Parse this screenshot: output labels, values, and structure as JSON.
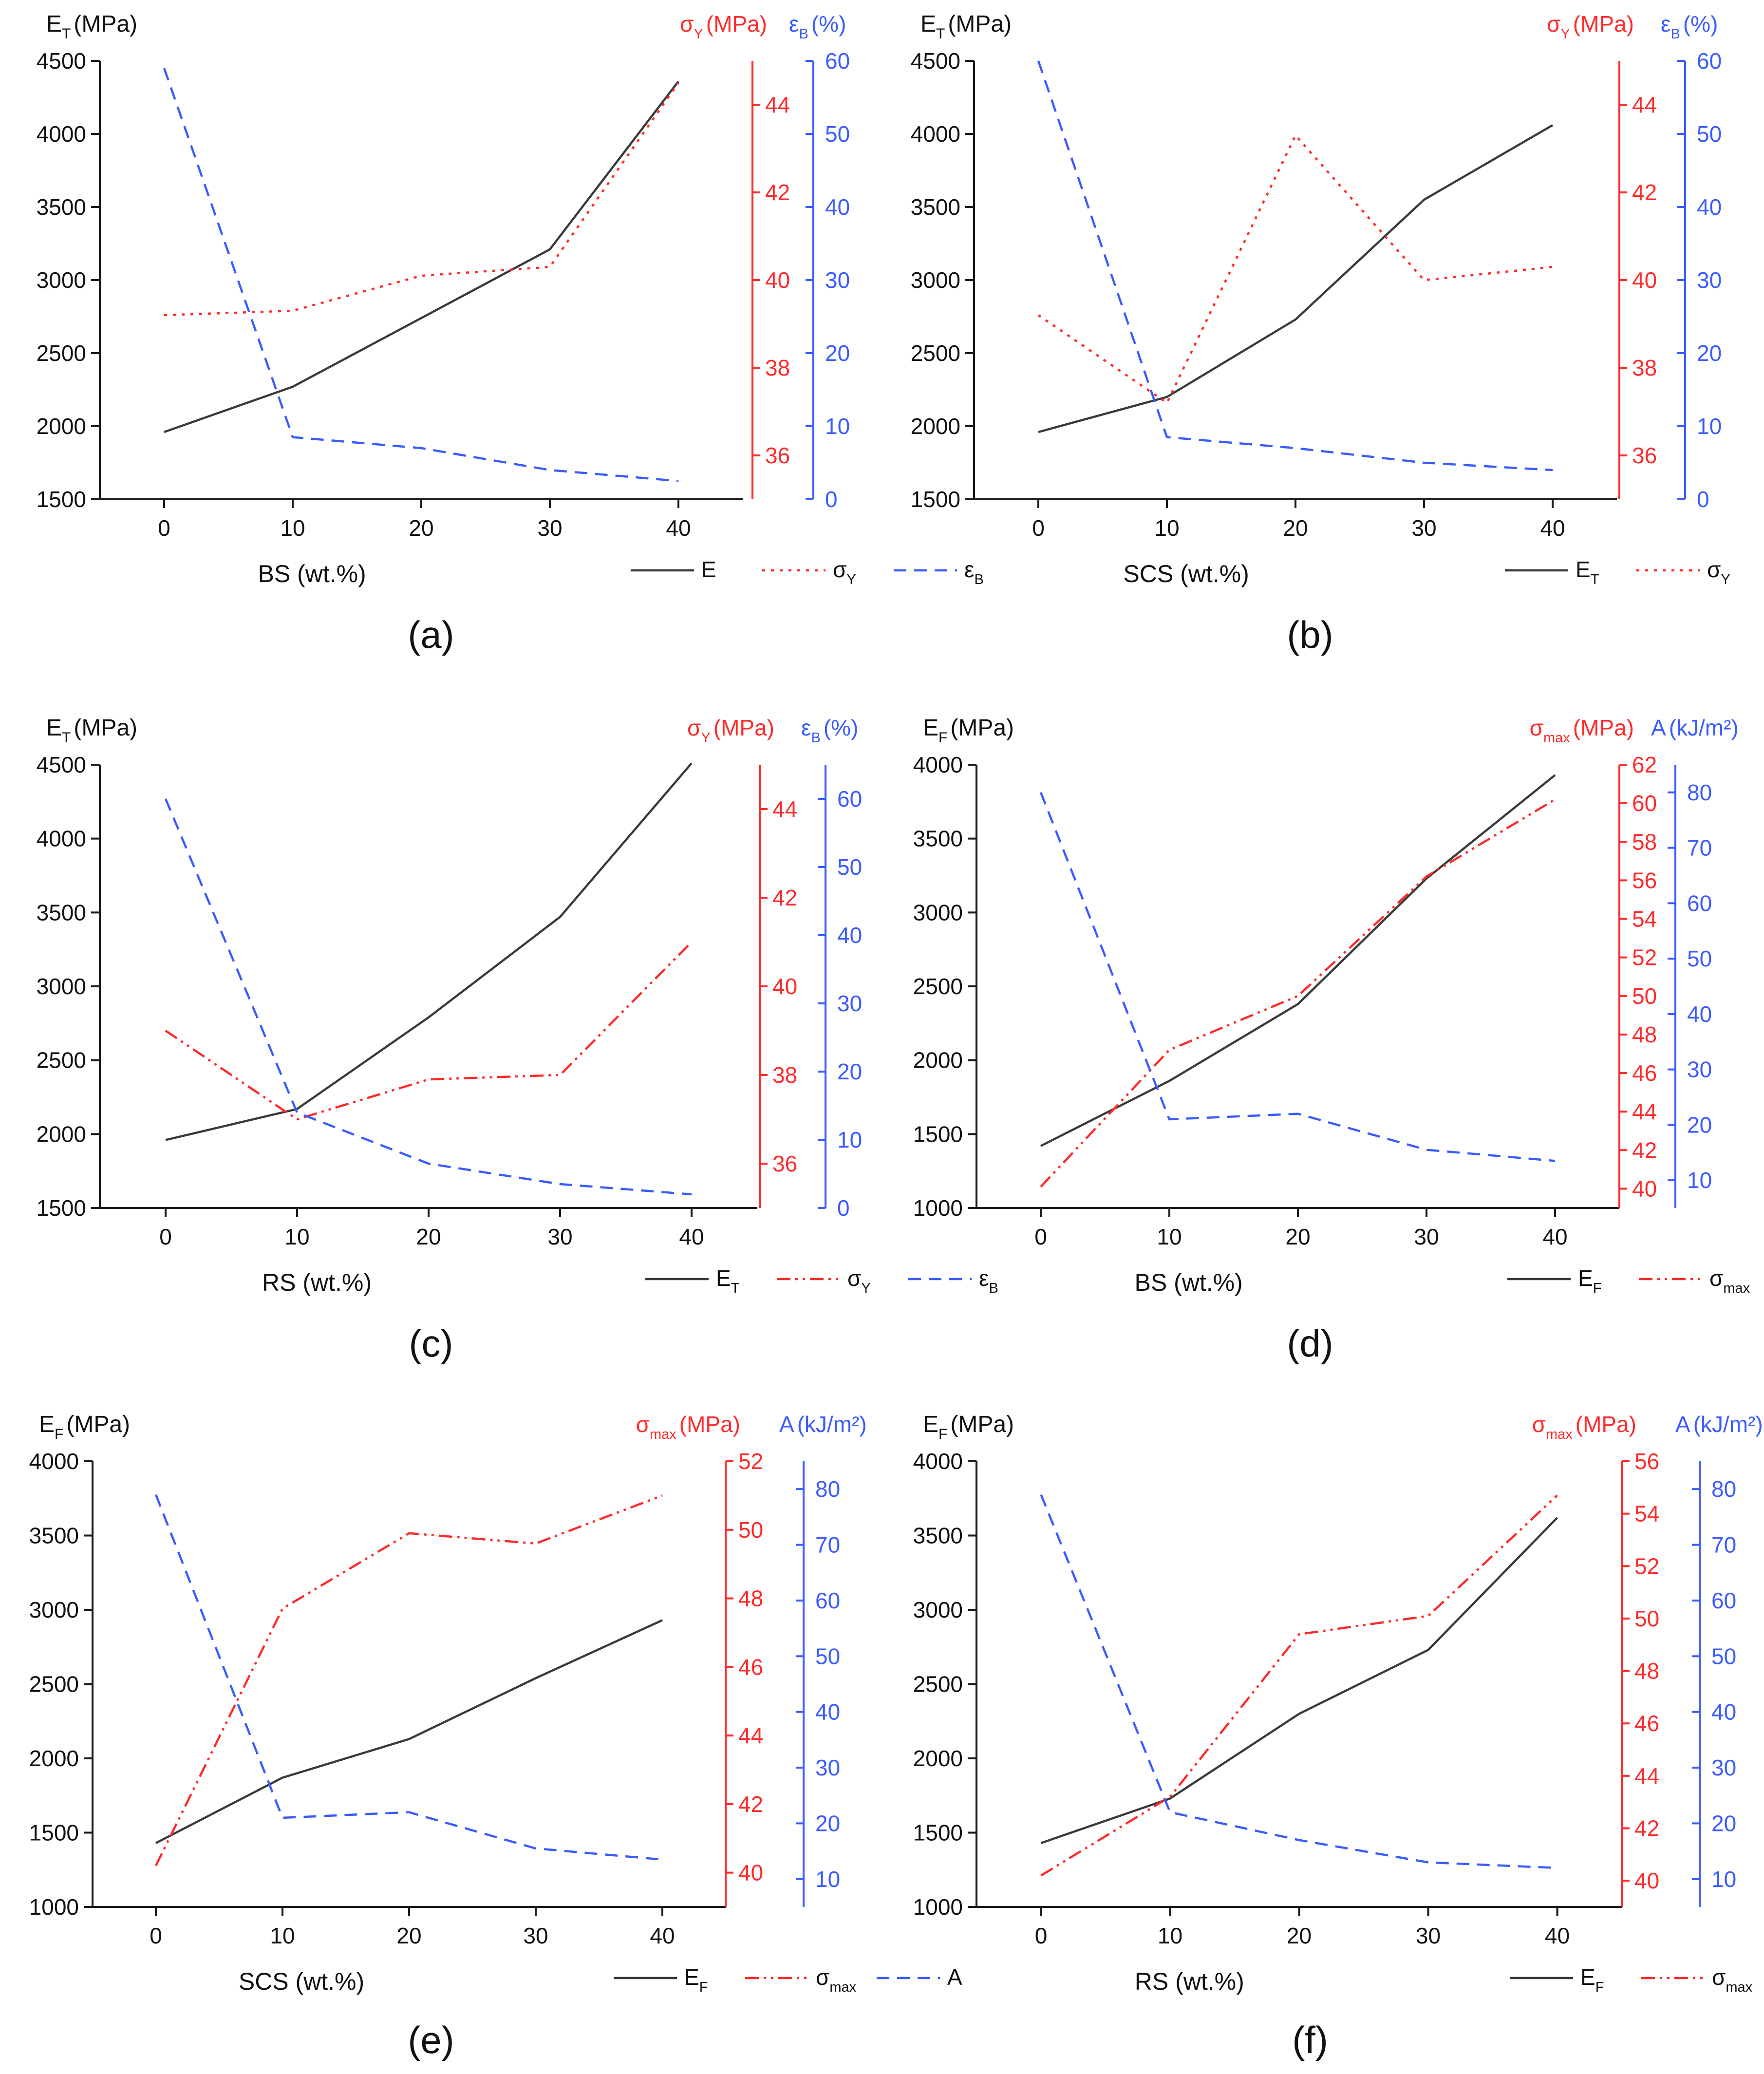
{
  "colors": {
    "e": "#3a3a3a",
    "sigma": "#ff2a2a",
    "third": "#3b5bff",
    "axis": "#1a1a1a"
  },
  "chart_data": [
    {
      "id": "a",
      "type": "line",
      "caption": "(a)",
      "xlabel": "BS (wt.%)",
      "x": [
        0,
        10,
        20,
        30,
        40
      ],
      "x_ticks": [
        "0",
        "10",
        "20",
        "30",
        "40"
      ],
      "left_axis": {
        "label": "E",
        "label_sub": "T",
        "label_unit": "(MPa)",
        "ylim": [
          1500,
          4500
        ],
        "ticks": [
          1500,
          2000,
          2500,
          3000,
          3500,
          4000,
          4500
        ]
      },
      "mid_axis": {
        "label": "σ",
        "label_sub": "Y",
        "label_unit": "(MPa)",
        "ylim": [
          35,
          45
        ],
        "ticks": [
          36,
          38,
          40,
          42,
          44
        ]
      },
      "right_axis": {
        "label": "ε",
        "label_sub": "B",
        "label_unit": "(%)",
        "ylim": [
          0,
          60
        ],
        "ticks": [
          0,
          10,
          20,
          30,
          40,
          50,
          60
        ]
      },
      "series": [
        {
          "name": "E",
          "sub": "",
          "axis": "left",
          "style": "solid",
          "values": [
            1960,
            2270,
            2740,
            3210,
            4360
          ]
        },
        {
          "name": "σ",
          "sub": "Y",
          "axis": "mid",
          "style": "dotted",
          "values": [
            39.2,
            39.3,
            40.1,
            40.3,
            44.5
          ]
        },
        {
          "name": "ε",
          "sub": "B",
          "axis": "right",
          "style": "dashed",
          "values": [
            59,
            8.5,
            7,
            4,
            2.5
          ]
        }
      ]
    },
    {
      "id": "b",
      "type": "line",
      "caption": "(b)",
      "xlabel": "SCS (wt.%)",
      "x": [
        0,
        10,
        20,
        30,
        40
      ],
      "x_ticks": [
        "0",
        "10",
        "20",
        "30",
        "40"
      ],
      "left_axis": {
        "label": "E",
        "label_sub": "T",
        "label_unit": "(MPa)",
        "ylim": [
          1500,
          4500
        ],
        "ticks": [
          1500,
          2000,
          2500,
          3000,
          3500,
          4000,
          4500
        ]
      },
      "mid_axis": {
        "label": "σ",
        "label_sub": "Y",
        "label_unit": "(MPa)",
        "ylim": [
          35,
          45
        ],
        "ticks": [
          36,
          38,
          40,
          42,
          44
        ]
      },
      "right_axis": {
        "label": "ε",
        "label_sub": "B",
        "label_unit": "(%)",
        "ylim": [
          0,
          60
        ],
        "ticks": [
          0,
          10,
          20,
          30,
          40,
          50,
          60
        ]
      },
      "series": [
        {
          "name": "E",
          "sub": "T",
          "axis": "left",
          "style": "solid",
          "values": [
            1960,
            2200,
            2730,
            3550,
            4060
          ]
        },
        {
          "name": "σ",
          "sub": "Y",
          "axis": "mid",
          "style": "dotted",
          "values": [
            39.2,
            37.2,
            43.3,
            40.0,
            40.3
          ]
        },
        {
          "name": "ε",
          "sub": "B",
          "axis": "right",
          "style": "dashed",
          "values": [
            60,
            8.5,
            7,
            5,
            4
          ]
        }
      ]
    },
    {
      "id": "c",
      "type": "line",
      "caption": "(c)",
      "xlabel": "RS (wt.%)",
      "x": [
        0,
        10,
        20,
        30,
        40
      ],
      "x_ticks": [
        "0",
        "10",
        "20",
        "30",
        "40"
      ],
      "left_axis": {
        "label": "E",
        "label_sub": "T",
        "label_unit": "(MPa)",
        "ylim": [
          1500,
          4500
        ],
        "ticks": [
          1500,
          2000,
          2500,
          3000,
          3500,
          4000,
          4500
        ]
      },
      "mid_axis": {
        "label": "σ",
        "label_sub": "Y",
        "label_unit": "(MPa)",
        "ylim": [
          35,
          45
        ],
        "ticks": [
          36,
          38,
          40,
          42,
          44
        ]
      },
      "right_axis": {
        "label": "ε",
        "label_sub": "B",
        "label_unit": "(%)",
        "ylim": [
          0,
          65
        ],
        "ticks": [
          0,
          10,
          20,
          30,
          40,
          50,
          60
        ]
      },
      "series": [
        {
          "name": "E",
          "sub": "T",
          "axis": "left",
          "style": "solid",
          "values": [
            1960,
            2170,
            2790,
            3470,
            4510
          ]
        },
        {
          "name": "σ",
          "sub": "Y",
          "axis": "mid",
          "style": "dashdotdot",
          "values": [
            39.0,
            37.0,
            37.9,
            38.0,
            41.0
          ]
        },
        {
          "name": "ε",
          "sub": "B",
          "axis": "right",
          "style": "dashed",
          "values": [
            60,
            14,
            6.5,
            3.5,
            2
          ]
        }
      ]
    },
    {
      "id": "d",
      "type": "line",
      "caption": "(d)",
      "xlabel": "BS (wt.%)",
      "x": [
        0,
        10,
        20,
        30,
        40
      ],
      "x_ticks": [
        "0",
        "10",
        "20",
        "30",
        "40"
      ],
      "left_axis": {
        "label": "E",
        "label_sub": "F",
        "label_unit": "(MPa)",
        "ylim": [
          1000,
          4000
        ],
        "ticks": [
          1000,
          1500,
          2000,
          2500,
          3000,
          3500,
          4000
        ]
      },
      "mid_axis": {
        "label": "σ",
        "label_sub": "max",
        "label_unit": "(MPa)",
        "ylim": [
          39,
          62
        ],
        "ticks": [
          40,
          42,
          44,
          46,
          48,
          50,
          52,
          54,
          56,
          58,
          60,
          62
        ]
      },
      "right_axis": {
        "label": "A",
        "label_sub": "",
        "label_unit": "(kJ/m²)",
        "ylim": [
          5,
          85
        ],
        "ticks": [
          10,
          20,
          30,
          40,
          50,
          60,
          70,
          80
        ]
      },
      "series": [
        {
          "name": "E",
          "sub": "F",
          "axis": "left",
          "style": "solid",
          "values": [
            1420,
            1860,
            2380,
            3230,
            3930
          ]
        },
        {
          "name": "σ",
          "sub": "max",
          "axis": "mid",
          "style": "dashdotdot",
          "values": [
            40.1,
            47.2,
            50.0,
            56.2,
            60.2
          ]
        },
        {
          "name": "A",
          "sub": "",
          "axis": "right",
          "style": "dashed",
          "values": [
            80,
            21,
            22,
            15.5,
            13.5
          ]
        }
      ]
    },
    {
      "id": "e",
      "type": "line",
      "caption": "(e)",
      "xlabel": "SCS (wt.%)",
      "x": [
        0,
        10,
        20,
        30,
        40
      ],
      "x_ticks": [
        "0",
        "10",
        "20",
        "30",
        "40"
      ],
      "left_axis": {
        "label": "E",
        "label_sub": "F",
        "label_unit": "(MPa)",
        "ylim": [
          1000,
          4000
        ],
        "ticks": [
          1000,
          1500,
          2000,
          2500,
          3000,
          3500,
          4000
        ]
      },
      "mid_axis": {
        "label": "σ",
        "label_sub": "max",
        "label_unit": "(MPa)",
        "ylim": [
          39,
          52
        ],
        "ticks": [
          40,
          42,
          44,
          46,
          48,
          50,
          52
        ]
      },
      "right_axis": {
        "label": "A",
        "label_sub": "",
        "label_unit": "(kJ/m²)",
        "ylim": [
          5,
          85
        ],
        "ticks": [
          10,
          20,
          30,
          40,
          50,
          60,
          70,
          80
        ]
      },
      "series": [
        {
          "name": "E",
          "sub": "F",
          "axis": "left",
          "style": "solid",
          "values": [
            1430,
            1870,
            2130,
            2540,
            2930
          ]
        },
        {
          "name": "σ",
          "sub": "max",
          "axis": "mid",
          "style": "dashdotdot",
          "values": [
            40.2,
            47.7,
            49.9,
            49.6,
            51.0
          ]
        },
        {
          "name": "A",
          "sub": "",
          "axis": "right",
          "style": "dashed",
          "values": [
            79,
            21,
            22,
            15.5,
            13.5
          ]
        }
      ]
    },
    {
      "id": "f",
      "type": "line",
      "caption": "(f)",
      "xlabel": "RS (wt.%)",
      "x": [
        0,
        10,
        20,
        30,
        40
      ],
      "x_ticks": [
        "0",
        "10",
        "20",
        "30",
        "40"
      ],
      "left_axis": {
        "label": "E",
        "label_sub": "F",
        "label_unit": "(MPa)",
        "ylim": [
          1000,
          4000
        ],
        "ticks": [
          1000,
          1500,
          2000,
          2500,
          3000,
          3500,
          4000
        ]
      },
      "mid_axis": {
        "label": "σ",
        "label_sub": "max",
        "label_unit": "(MPa)",
        "ylim": [
          39,
          56
        ],
        "ticks": [
          40,
          42,
          44,
          46,
          48,
          50,
          52,
          54,
          56
        ]
      },
      "right_axis": {
        "label": "A",
        "label_sub": "",
        "label_unit": "(kJ/m²)",
        "ylim": [
          5,
          85
        ],
        "ticks": [
          10,
          20,
          30,
          40,
          50,
          60,
          70,
          80
        ]
      },
      "series": [
        {
          "name": "E",
          "sub": "F",
          "axis": "left",
          "style": "solid",
          "values": [
            1430,
            1730,
            2300,
            2730,
            3620
          ]
        },
        {
          "name": "σ",
          "sub": "max",
          "axis": "mid",
          "style": "dashdotdot",
          "values": [
            40.2,
            43.2,
            49.4,
            50.1,
            54.7
          ]
        },
        {
          "name": "A",
          "sub": "",
          "axis": "right",
          "style": "dashed",
          "values": [
            79,
            22,
            17,
            13,
            12
          ]
        }
      ]
    }
  ]
}
